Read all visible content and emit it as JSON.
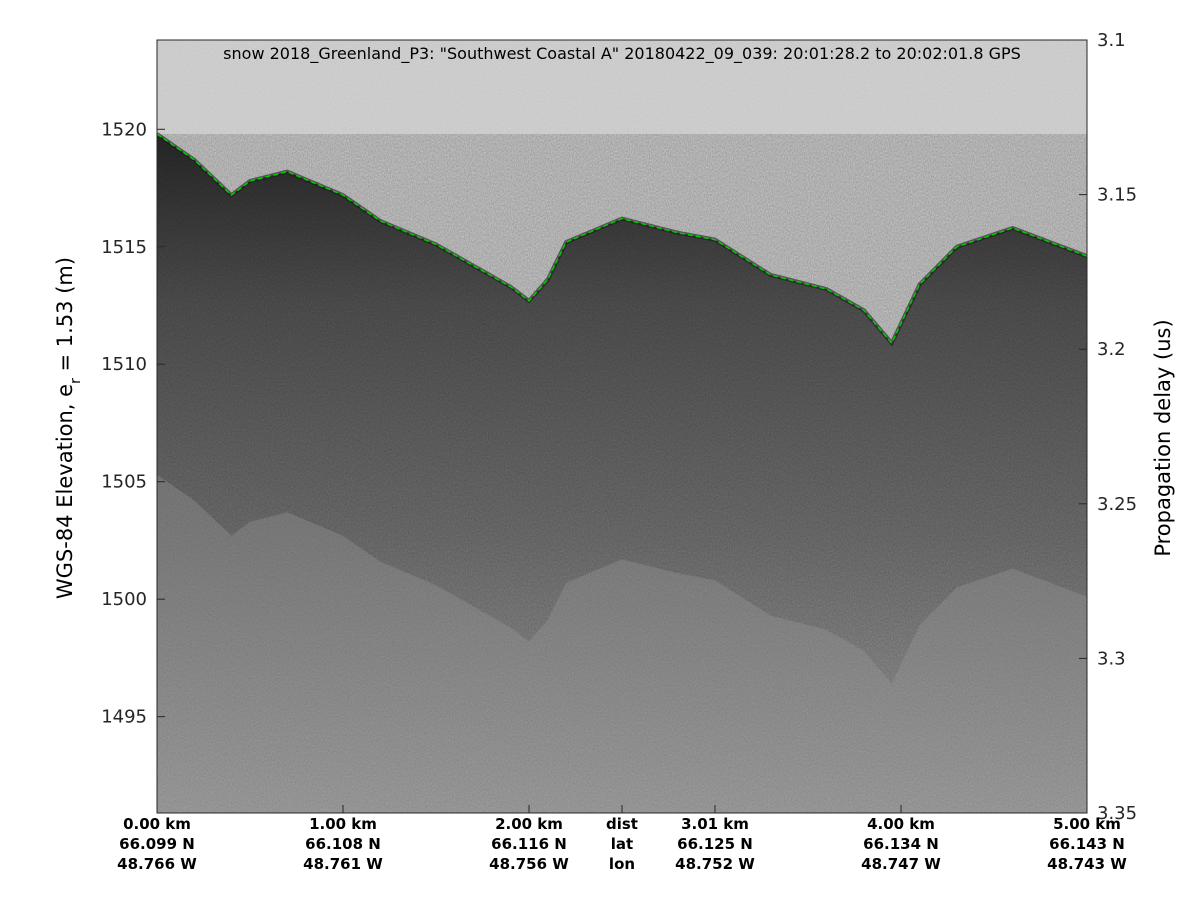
{
  "chart_data": {
    "type": "heatmap",
    "title": "snow 2018_Greenland_P3: \"Southwest Coastal A\"  20180422_09_039: 20:01:28.2 to 20:02:01.8 GPS",
    "ylabel_left": {
      "main": "WGS-84 Elevation, e",
      "sub": "r",
      "rest": " = 1.53 (m)"
    },
    "ylabel_right": "Propagation delay (us)",
    "left_axis": {
      "range": [
        1490.9,
        1523.8
      ],
      "ticks": [
        1495,
        1500,
        1505,
        1510,
        1515,
        1520
      ],
      "tick_labels": [
        "1495",
        "1500",
        "1505",
        "1510",
        "1515",
        "1520"
      ]
    },
    "right_axis": {
      "range": [
        3.35,
        3.1
      ],
      "ticks": [
        3.1,
        3.15,
        3.2,
        3.25,
        3.3,
        3.35
      ],
      "tick_labels": [
        "3.1",
        "3.15",
        "3.2",
        "3.25",
        "3.3",
        "3.35"
      ]
    },
    "x_range_km": [
      0,
      5.0
    ],
    "x_ticks": [
      {
        "km": 0.0,
        "dist": "0.00 km",
        "lat": "66.099 N",
        "lon": "48.766 W"
      },
      {
        "km": 1.0,
        "dist": "1.00 km",
        "lat": "66.108 N",
        "lon": "48.761 W"
      },
      {
        "km": 2.0,
        "dist": "2.00 km",
        "lat": "66.116 N",
        "lon": "48.756 W"
      },
      {
        "km": 2.5,
        "dist": "dist",
        "lat": "lat",
        "lon": "lon"
      },
      {
        "km": 3.0,
        "dist": "3.01 km",
        "lat": "66.125 N",
        "lon": "48.752 W"
      },
      {
        "km": 4.0,
        "dist": "4.00 km",
        "lat": "66.134 N",
        "lon": "48.747 W"
      },
      {
        "km": 5.0,
        "dist": "5.00 km",
        "lat": "66.143 N",
        "lon": "48.743 W"
      }
    ],
    "surface_pick": {
      "x_km": [
        0.0,
        0.2,
        0.4,
        0.5,
        0.7,
        1.0,
        1.2,
        1.5,
        1.9,
        2.0,
        2.1,
        2.2,
        2.5,
        2.8,
        3.0,
        3.3,
        3.6,
        3.8,
        3.95,
        4.1,
        4.3,
        4.6,
        5.0
      ],
      "elev_m": [
        1519.8,
        1518.7,
        1517.2,
        1517.8,
        1518.2,
        1517.2,
        1516.1,
        1515.1,
        1513.3,
        1512.7,
        1513.6,
        1515.2,
        1516.2,
        1515.6,
        1515.3,
        1513.8,
        1513.2,
        1512.3,
        1510.9,
        1513.4,
        1515.0,
        1515.8,
        1514.6
      ],
      "line_style": "dashed",
      "color": "#00cc00"
    },
    "colormap": "gray",
    "grid": false
  }
}
